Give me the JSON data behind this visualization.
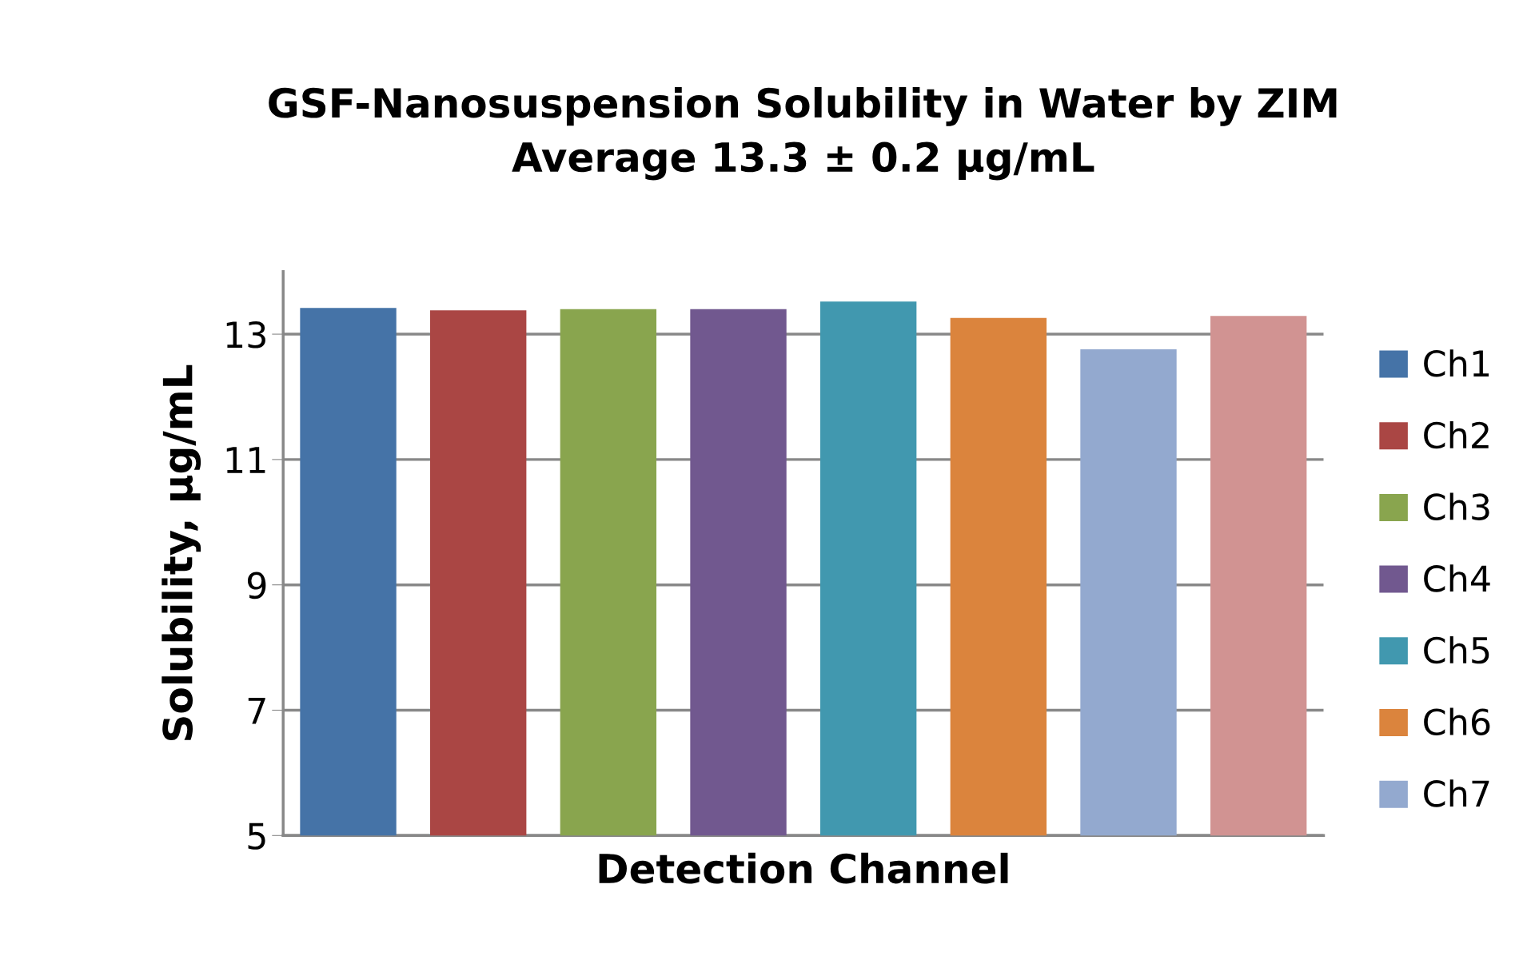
{
  "chart_data": {
    "type": "bar",
    "title": "GSF-Nanosuspension Solubility in Water by ZIM\nAverage 13.3 ± 0.2 µg/mL",
    "xlabel": "Detection Channel",
    "ylabel": "Solubility, µg/mL",
    "categories": [
      null,
      null,
      null,
      null,
      null,
      null,
      null,
      null
    ],
    "series": [
      {
        "name": "Ch1",
        "color": "#4573a7",
        "values": [
          13.42,
          null,
          null,
          null,
          null,
          null,
          null,
          null
        ]
      },
      {
        "name": "Ch2",
        "color": "#aa4644",
        "values": [
          null,
          13.38,
          null,
          null,
          null,
          null,
          null,
          null
        ]
      },
      {
        "name": "Ch3",
        "color": "#89a54e",
        "values": [
          null,
          null,
          13.4,
          null,
          null,
          null,
          null,
          null
        ]
      },
      {
        "name": "Ch4",
        "color": "#71588f",
        "values": [
          null,
          null,
          null,
          13.4,
          null,
          null,
          null,
          null
        ]
      },
      {
        "name": "Ch5",
        "color": "#4198af",
        "values": [
          null,
          null,
          null,
          null,
          13.52,
          null,
          null,
          null
        ]
      },
      {
        "name": "Ch6",
        "color": "#db843d",
        "values": [
          null,
          null,
          null,
          null,
          null,
          13.26,
          null,
          null
        ]
      },
      {
        "name": "Ch7",
        "color": "#93a9cf",
        "values": [
          null,
          null,
          null,
          null,
          null,
          null,
          12.76,
          null
        ]
      },
      {
        "color": "#d19392",
        "values": [
          null,
          null,
          null,
          null,
          null,
          null,
          null,
          13.29
        ]
      }
    ],
    "ylim": [
      5,
      14
    ],
    "yticks": [
      5,
      7,
      9,
      11,
      13
    ],
    "grid": "y",
    "legend": "right",
    "tick_labels": "y"
  }
}
